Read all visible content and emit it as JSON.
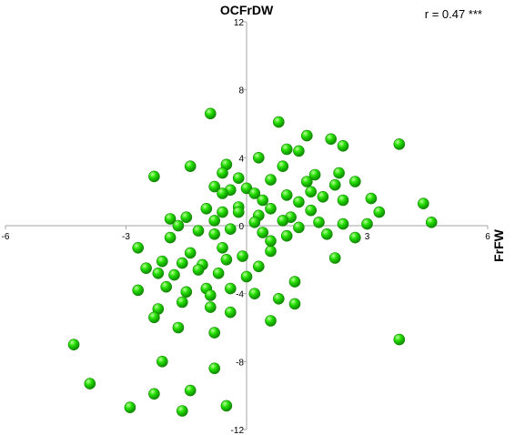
{
  "chart_data": {
    "type": "scatter",
    "title": "OCFrDW",
    "xlabel": "FrFW",
    "ylabel": "",
    "annotation": "r = 0.47 ***",
    "xlim": [
      -6,
      6
    ],
    "ylim": [
      -12,
      12
    ],
    "x_ticks": [
      -6,
      -3,
      0,
      3,
      6
    ],
    "y_ticks": [
      -12,
      -8,
      -4,
      0,
      4,
      8,
      12
    ],
    "grid": false,
    "marker_color": "#22dd00",
    "marker_edge": "#118800",
    "points": [
      [
        -0.9,
        6.6
      ],
      [
        0.8,
        6.1
      ],
      [
        1.5,
        5.3
      ],
      [
        2.1,
        5.1
      ],
      [
        2.4,
        4.7
      ],
      [
        3.8,
        4.8
      ],
      [
        1.0,
        4.5
      ],
      [
        1.3,
        4.4
      ],
      [
        0.3,
        4.0
      ],
      [
        -1.4,
        3.5
      ],
      [
        -0.5,
        3.6
      ],
      [
        0.9,
        3.5
      ],
      [
        -2.3,
        2.9
      ],
      [
        1.7,
        3.0
      ],
      [
        2.3,
        3.1
      ],
      [
        2.7,
        2.6
      ],
      [
        -0.6,
        3.1
      ],
      [
        -0.2,
        2.8
      ],
      [
        0.6,
        2.7
      ],
      [
        1.5,
        2.6
      ],
      [
        2.2,
        2.4
      ],
      [
        0.0,
        2.2
      ],
      [
        -0.8,
        2.3
      ],
      [
        -0.4,
        2.1
      ],
      [
        0.2,
        1.9
      ],
      [
        1.0,
        1.8
      ],
      [
        1.9,
        1.7
      ],
      [
        -0.6,
        1.9
      ],
      [
        0.4,
        1.5
      ],
      [
        1.3,
        1.4
      ],
      [
        2.4,
        1.5
      ],
      [
        3.1,
        1.6
      ],
      [
        4.4,
        1.3
      ],
      [
        -1.0,
        1.0
      ],
      [
        -0.2,
        1.1
      ],
      [
        0.6,
        1.0
      ],
      [
        1.6,
        0.9
      ],
      [
        3.3,
        0.8
      ],
      [
        0.3,
        0.6
      ],
      [
        -0.6,
        0.8
      ],
      [
        1.1,
        0.5
      ],
      [
        1.8,
        0.2
      ],
      [
        2.4,
        0.1
      ],
      [
        4.6,
        0.2
      ],
      [
        -1.9,
        0.4
      ],
      [
        -1.5,
        0.5
      ],
      [
        -0.8,
        0.3
      ],
      [
        0.2,
        0.2
      ],
      [
        0.9,
        0.3
      ],
      [
        1.3,
        -0.1
      ],
      [
        2.0,
        -0.5
      ],
      [
        2.7,
        -0.7
      ],
      [
        -1.7,
        0.0
      ],
      [
        -1.2,
        -0.3
      ],
      [
        -0.4,
        -0.2
      ],
      [
        0.4,
        -0.4
      ],
      [
        -0.8,
        -0.5
      ],
      [
        1.0,
        -0.6
      ],
      [
        -1.9,
        -0.7
      ],
      [
        -2.7,
        -1.3
      ],
      [
        -1.4,
        -1.6
      ],
      [
        -0.6,
        -1.3
      ],
      [
        -0.1,
        -1.8
      ],
      [
        0.6,
        -1.5
      ],
      [
        -2.1,
        -2.1
      ],
      [
        -1.6,
        -2.2
      ],
      [
        -1.1,
        -2.3
      ],
      [
        -0.5,
        -2.0
      ],
      [
        0.3,
        -2.4
      ],
      [
        -2.5,
        -2.5
      ],
      [
        -2.2,
        -2.8
      ],
      [
        -1.8,
        -2.9
      ],
      [
        -1.2,
        -2.6
      ],
      [
        -0.7,
        -2.8
      ],
      [
        0.0,
        -3.0
      ],
      [
        1.2,
        -3.3
      ],
      [
        -2.0,
        -3.6
      ],
      [
        -1.5,
        -3.9
      ],
      [
        -1.0,
        -3.7
      ],
      [
        -0.4,
        -3.7
      ],
      [
        -2.7,
        -3.8
      ],
      [
        -0.9,
        -4.1
      ],
      [
        0.2,
        -4.0
      ],
      [
        0.8,
        -4.3
      ],
      [
        -1.6,
        -4.5
      ],
      [
        -2.2,
        -4.9
      ],
      [
        -0.9,
        -4.8
      ],
      [
        1.2,
        -4.6
      ],
      [
        -0.4,
        -5.1
      ],
      [
        0.6,
        -5.6
      ],
      [
        -2.3,
        -5.4
      ],
      [
        -1.7,
        -6.0
      ],
      [
        -0.8,
        -6.3
      ],
      [
        3.8,
        -6.7
      ],
      [
        -4.3,
        -7.0
      ],
      [
        -2.1,
        -8.0
      ],
      [
        -0.8,
        -8.4
      ],
      [
        -3.9,
        -9.3
      ],
      [
        -2.3,
        -9.9
      ],
      [
        -1.4,
        -9.7
      ],
      [
        -2.9,
        -10.7
      ],
      [
        -1.6,
        -10.9
      ],
      [
        -0.5,
        -10.6
      ],
      [
        3.0,
        0.1
      ],
      [
        2.2,
        -1.9
      ],
      [
        0.6,
        -0.9
      ],
      [
        -0.2,
        0.8
      ],
      [
        1.6,
        2.0
      ]
    ]
  }
}
